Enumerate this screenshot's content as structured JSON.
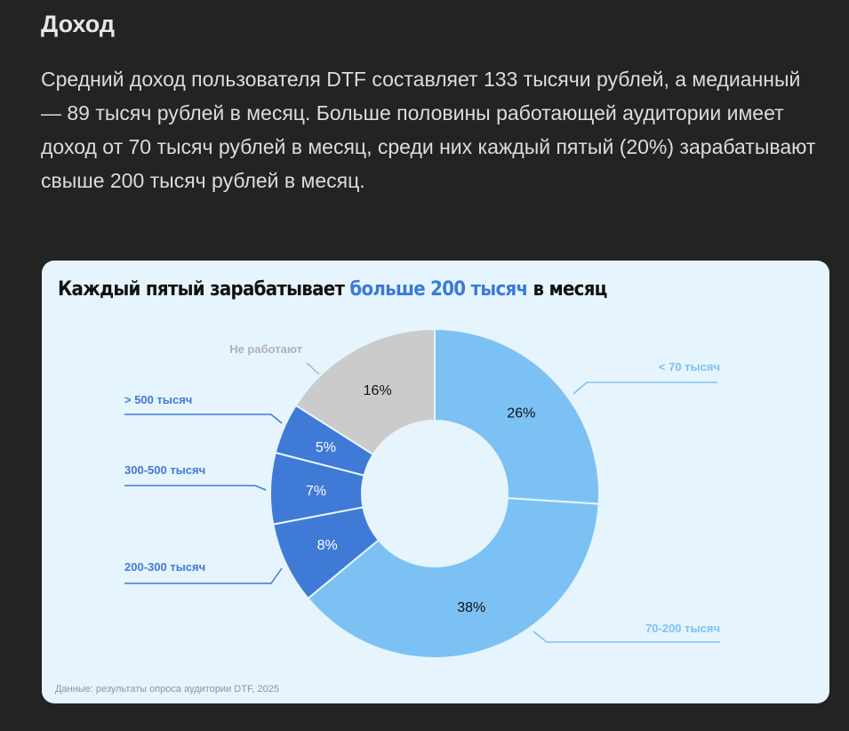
{
  "article": {
    "heading": "Доход",
    "paragraph": "Средний доход пользователя DTF составляет 133 тысячи рублей, а медианный — 89 тысяч рублей в месяц. Больше половины работающей аудитории имеет доход от 70 тысяч рублей в месяц, среди них каждый пятый (20%) зарабатывают свыше 200 тысяч рублей в месяц."
  },
  "chart_data": {
    "type": "pie",
    "donut": true,
    "title_parts": {
      "before": "Каждый пятый зарабатывает ",
      "highlight": "больше 200 тысяч",
      "after": " в месяц"
    },
    "source": "Данные: результаты опроса аудитории DTF, 2025",
    "slices": [
      {
        "label": "< 70 тысяч",
        "value": 26,
        "value_label": "26%",
        "color": "#7cc1f4",
        "label_color": "#7cc1f4",
        "text_color": "#111"
      },
      {
        "label": "70-200 тысяч",
        "value": 38,
        "value_label": "38%",
        "color": "#7cc1f4",
        "label_color": "#7cc1f4",
        "text_color": "#111"
      },
      {
        "label": "200-300 тысяч",
        "value": 8,
        "value_label": "8%",
        "color": "#3f7ad6",
        "label_color": "#3f7ad6",
        "text_color": "#fff"
      },
      {
        "label": "300-500 тысяч",
        "value": 7,
        "value_label": "7%",
        "color": "#3f7ad6",
        "label_color": "#3f7ad6",
        "text_color": "#fff"
      },
      {
        "label": "> 500 тысяч",
        "value": 5,
        "value_label": "5%",
        "color": "#3f7ad6",
        "label_color": "#3f7ad6",
        "text_color": "#fff"
      },
      {
        "label": "Не работают",
        "value": 16,
        "value_label": "16%",
        "color": "#cccbcb",
        "label_color": "#b0b3b6",
        "text_color": "#111"
      }
    ]
  }
}
